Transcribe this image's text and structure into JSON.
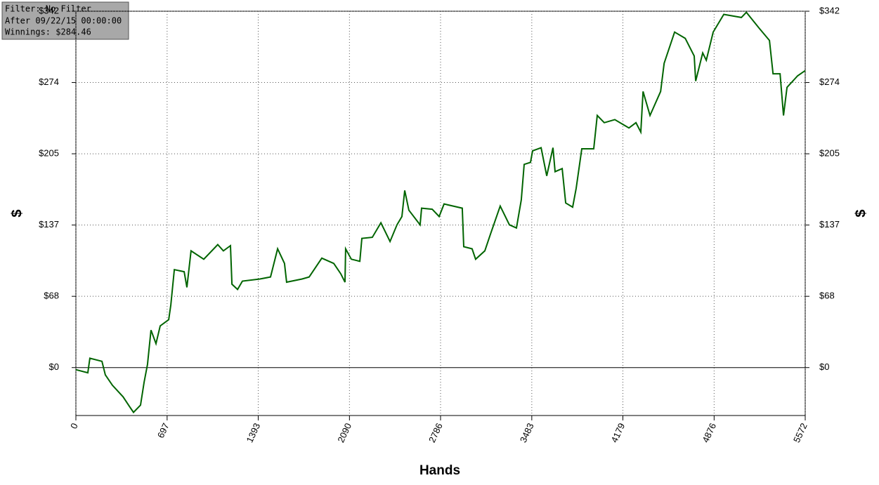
{
  "info": {
    "filter": "Filter: No Filter",
    "after": "After 09/22/15 00:00:00",
    "winnings": "Winnings: $284.46"
  },
  "chart_data": {
    "type": "line",
    "xlabel": "Hands",
    "ylabel": "$",
    "ylabel2": "$",
    "x": [
      0,
      91,
      107,
      199,
      225,
      279,
      360,
      413,
      440,
      494,
      521,
      547,
      574,
      612,
      644,
      709,
      725,
      752,
      827,
      848,
      880,
      977,
      1084,
      1127,
      1181,
      1192,
      1235,
      1272,
      1406,
      1487,
      1541,
      1594,
      1610,
      1728,
      1782,
      1879,
      1970,
      2024,
      2056,
      2061,
      2104,
      2169,
      2185,
      2265,
      2330,
      2400,
      2453,
      2491,
      2512,
      2544,
      2630,
      2641,
      2722,
      2775,
      2813,
      2952,
      2963,
      3027,
      3054,
      3124,
      3167,
      3242,
      3312,
      3366,
      3403,
      3425,
      3473,
      3489,
      3554,
      3597,
      3645,
      3661,
      3715,
      3742,
      3795,
      3822,
      3865,
      3956,
      3983,
      4037,
      4117,
      4225,
      4279,
      4316,
      4333,
      4386,
      4467,
      4494,
      4574,
      4655,
      4724,
      4735,
      4789,
      4816,
      4869,
      4950,
      5084,
      5122,
      5218,
      5299,
      5326,
      5380,
      5406,
      5433,
      5514,
      5572
    ],
    "series": [
      {
        "color": "#006400",
        "values": [
          -2,
          -5,
          9,
          6,
          -7,
          -17,
          -28,
          -38,
          -43,
          -36,
          -14,
          3,
          36,
          23,
          40,
          46,
          60,
          94,
          92,
          77,
          112,
          104,
          118,
          112,
          117,
          80,
          75,
          83,
          85,
          87,
          114,
          100,
          82,
          85,
          87,
          105,
          100,
          90,
          82,
          114,
          104,
          102,
          124,
          125,
          139,
          121,
          137,
          145,
          170,
          151,
          137,
          153,
          152,
          145,
          157,
          153,
          116,
          114,
          104,
          112,
          128,
          155,
          137,
          134,
          161,
          195,
          197,
          208,
          211,
          184,
          211,
          188,
          191,
          158,
          154,
          172,
          210,
          210,
          242,
          235,
          238,
          230,
          235,
          226,
          265,
          242,
          265,
          292,
          322,
          316,
          299,
          275,
          302,
          295,
          322,
          339,
          336,
          341,
          326,
          314,
          282,
          282,
          242,
          269,
          280,
          285
        ]
      }
    ],
    "xlim": [
      0,
      5572
    ],
    "xticks": [
      0,
      697,
      1393,
      2090,
      2786,
      3483,
      4179,
      4876,
      5572
    ],
    "ylim": [
      -46,
      342
    ],
    "yticks": [
      {
        "value": 0,
        "label": "$0"
      },
      {
        "value": 68.4,
        "label": "$68"
      },
      {
        "value": 136.8,
        "label": "$137"
      },
      {
        "value": 205.2,
        "label": "$205"
      },
      {
        "value": 273.6,
        "label": "$274"
      },
      {
        "value": 342,
        "label": "$342"
      }
    ],
    "grid": true
  }
}
